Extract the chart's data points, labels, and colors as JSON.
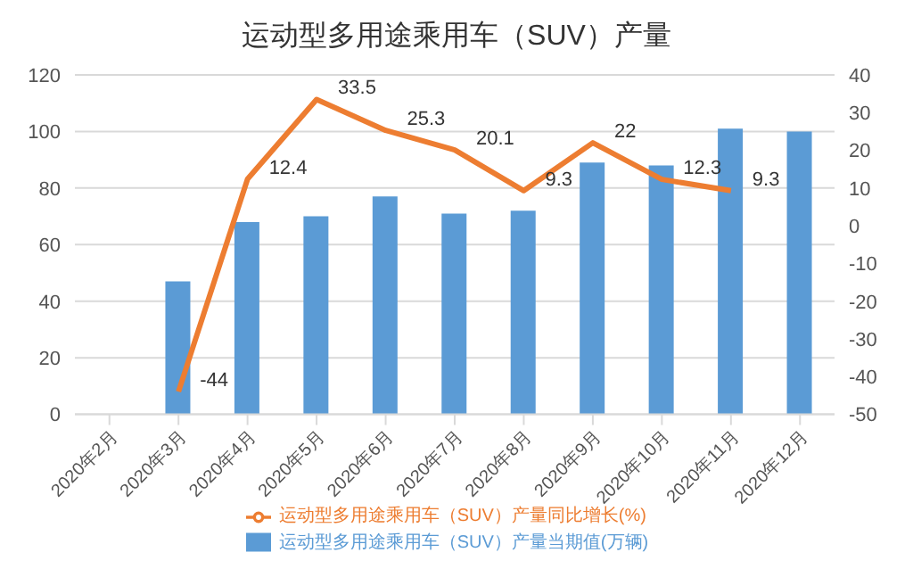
{
  "chart_data": {
    "type": "bar",
    "title": "运动型多用途乘用车（SUV）产量",
    "categories": [
      "2020年2月",
      "2020年3月",
      "2020年4月",
      "2020年5月",
      "2020年6月",
      "2020年7月",
      "2020年8月",
      "2020年9月",
      "2020年10月",
      "2020年11月",
      "2020年12月"
    ],
    "series": [
      {
        "name": "运动型多用途乘用车（SUV）产量当期值(万辆)",
        "color": "#5b9bd5",
        "values": [
          null,
          47,
          68,
          70,
          77,
          71,
          72,
          89,
          88,
          101,
          100
        ]
      },
      {
        "name": "运动型多用途乘用车（SUV）产量同比增长(%)",
        "type": "line",
        "axis": "y2",
        "color": "#ed7d31",
        "values": [
          null,
          -44,
          12.4,
          33.5,
          25.3,
          20.1,
          9.3,
          22,
          12.3,
          9.3,
          null
        ],
        "value_labels": [
          null,
          "-44",
          "12.4",
          "33.5",
          "25.3",
          "20.1",
          "9.3",
          "22",
          "12.3",
          "9.3",
          null
        ]
      }
    ],
    "ylim": [
      0,
      120
    ],
    "yticks": [
      0,
      20,
      40,
      60,
      80,
      100,
      120
    ],
    "y2lim": [
      -50,
      40
    ],
    "y2ticks": [
      -50,
      -40,
      -30,
      -20,
      -10,
      0,
      10,
      20,
      30,
      40
    ],
    "grid": "y",
    "legend": "bottom",
    "marker": "none"
  }
}
